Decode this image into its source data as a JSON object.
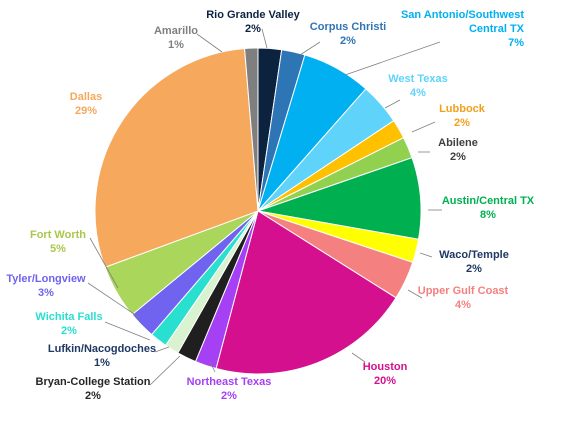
{
  "chart_data": {
    "type": "pie",
    "title": "",
    "slices": [
      {
        "name": "Rio Grande Valley",
        "value_label": "2%",
        "value": 2.3,
        "color": "#0c2340"
      },
      {
        "name": "Corpus Christi",
        "value_label": "2%",
        "value": 2.3,
        "color": "#2e75b6"
      },
      {
        "name": "San Antonio/Southwest Central TX",
        "value_label": "7%",
        "value": 6.8,
        "color": "#00b0f0"
      },
      {
        "name": "West Texas",
        "value_label": "4%",
        "value": 4.1,
        "color": "#5fd3f9"
      },
      {
        "name": "Lubbock",
        "value_label": "2%",
        "value": 1.9,
        "color": "#ffc000"
      },
      {
        "name": "Abilene",
        "value_label": "2%",
        "value": 2.1,
        "color": "#92d050"
      },
      {
        "name": "Austin/Central TX",
        "value_label": "8%",
        "value": 8.0,
        "color": "#00b050"
      },
      {
        "name": "Waco/Temple",
        "value_label": "2%",
        "value": 2.3,
        "color": "#ffff00"
      },
      {
        "name": "Upper Gulf Coast",
        "value_label": "4%",
        "value": 3.8,
        "color": "#f4817f"
      },
      {
        "name": "Houston",
        "value_label": "20%",
        "value": 20.0,
        "color": "#d4108f"
      },
      {
        "name": "Northeast Texas",
        "value_label": "2%",
        "value": 2.1,
        "color": "#a540f5"
      },
      {
        "name": "Bryan-College Station",
        "value_label": "2%",
        "value": 1.9,
        "color": "#1f1f1f"
      },
      {
        "name": "Lufkin/Nacogdoches",
        "value_label": "1%",
        "value": 1.4,
        "color": "#d9f2d0"
      },
      {
        "name": "Wichita Falls",
        "value_label": "2%",
        "value": 1.7,
        "color": "#29dfd0"
      },
      {
        "name": "Tyler/Longview",
        "value_label": "3%",
        "value": 2.7,
        "color": "#6f63f0"
      },
      {
        "name": "Fort Worth",
        "value_label": "5%",
        "value": 5.3,
        "color": "#a9d65b"
      },
      {
        "name": "Dallas",
        "value_label": "29%",
        "value": 29.0,
        "color": "#f6a85c"
      },
      {
        "name": "Amarillo",
        "value_label": "1%",
        "value": 1.3,
        "color": "#7f7f7f"
      }
    ],
    "label_colors": {
      "Rio Grande Valley": "#0c2340",
      "Corpus Christi": "#2e75b6",
      "San Antonio/Southwest Central TX": "#00b0f0",
      "West Texas": "#5fd3f9",
      "Lubbock": "#f2a01b",
      "Abilene": "#404040",
      "Austin/Central TX": "#00b050",
      "Waco/Temple": "#1f3864",
      "Upper Gulf Coast": "#f4817f",
      "Houston": "#d4108f",
      "Northeast Texas": "#a540f5",
      "Bryan-College Station": "#262626",
      "Lufkin/Nacogdoches": "#1f3864",
      "Wichita Falls": "#29dfd0",
      "Tyler/Longview": "#6f63f0",
      "Fort Worth": "#a9c84b",
      "Dallas": "#f6a85c",
      "Amarillo": "#7f7f7f"
    },
    "legend": "none"
  }
}
